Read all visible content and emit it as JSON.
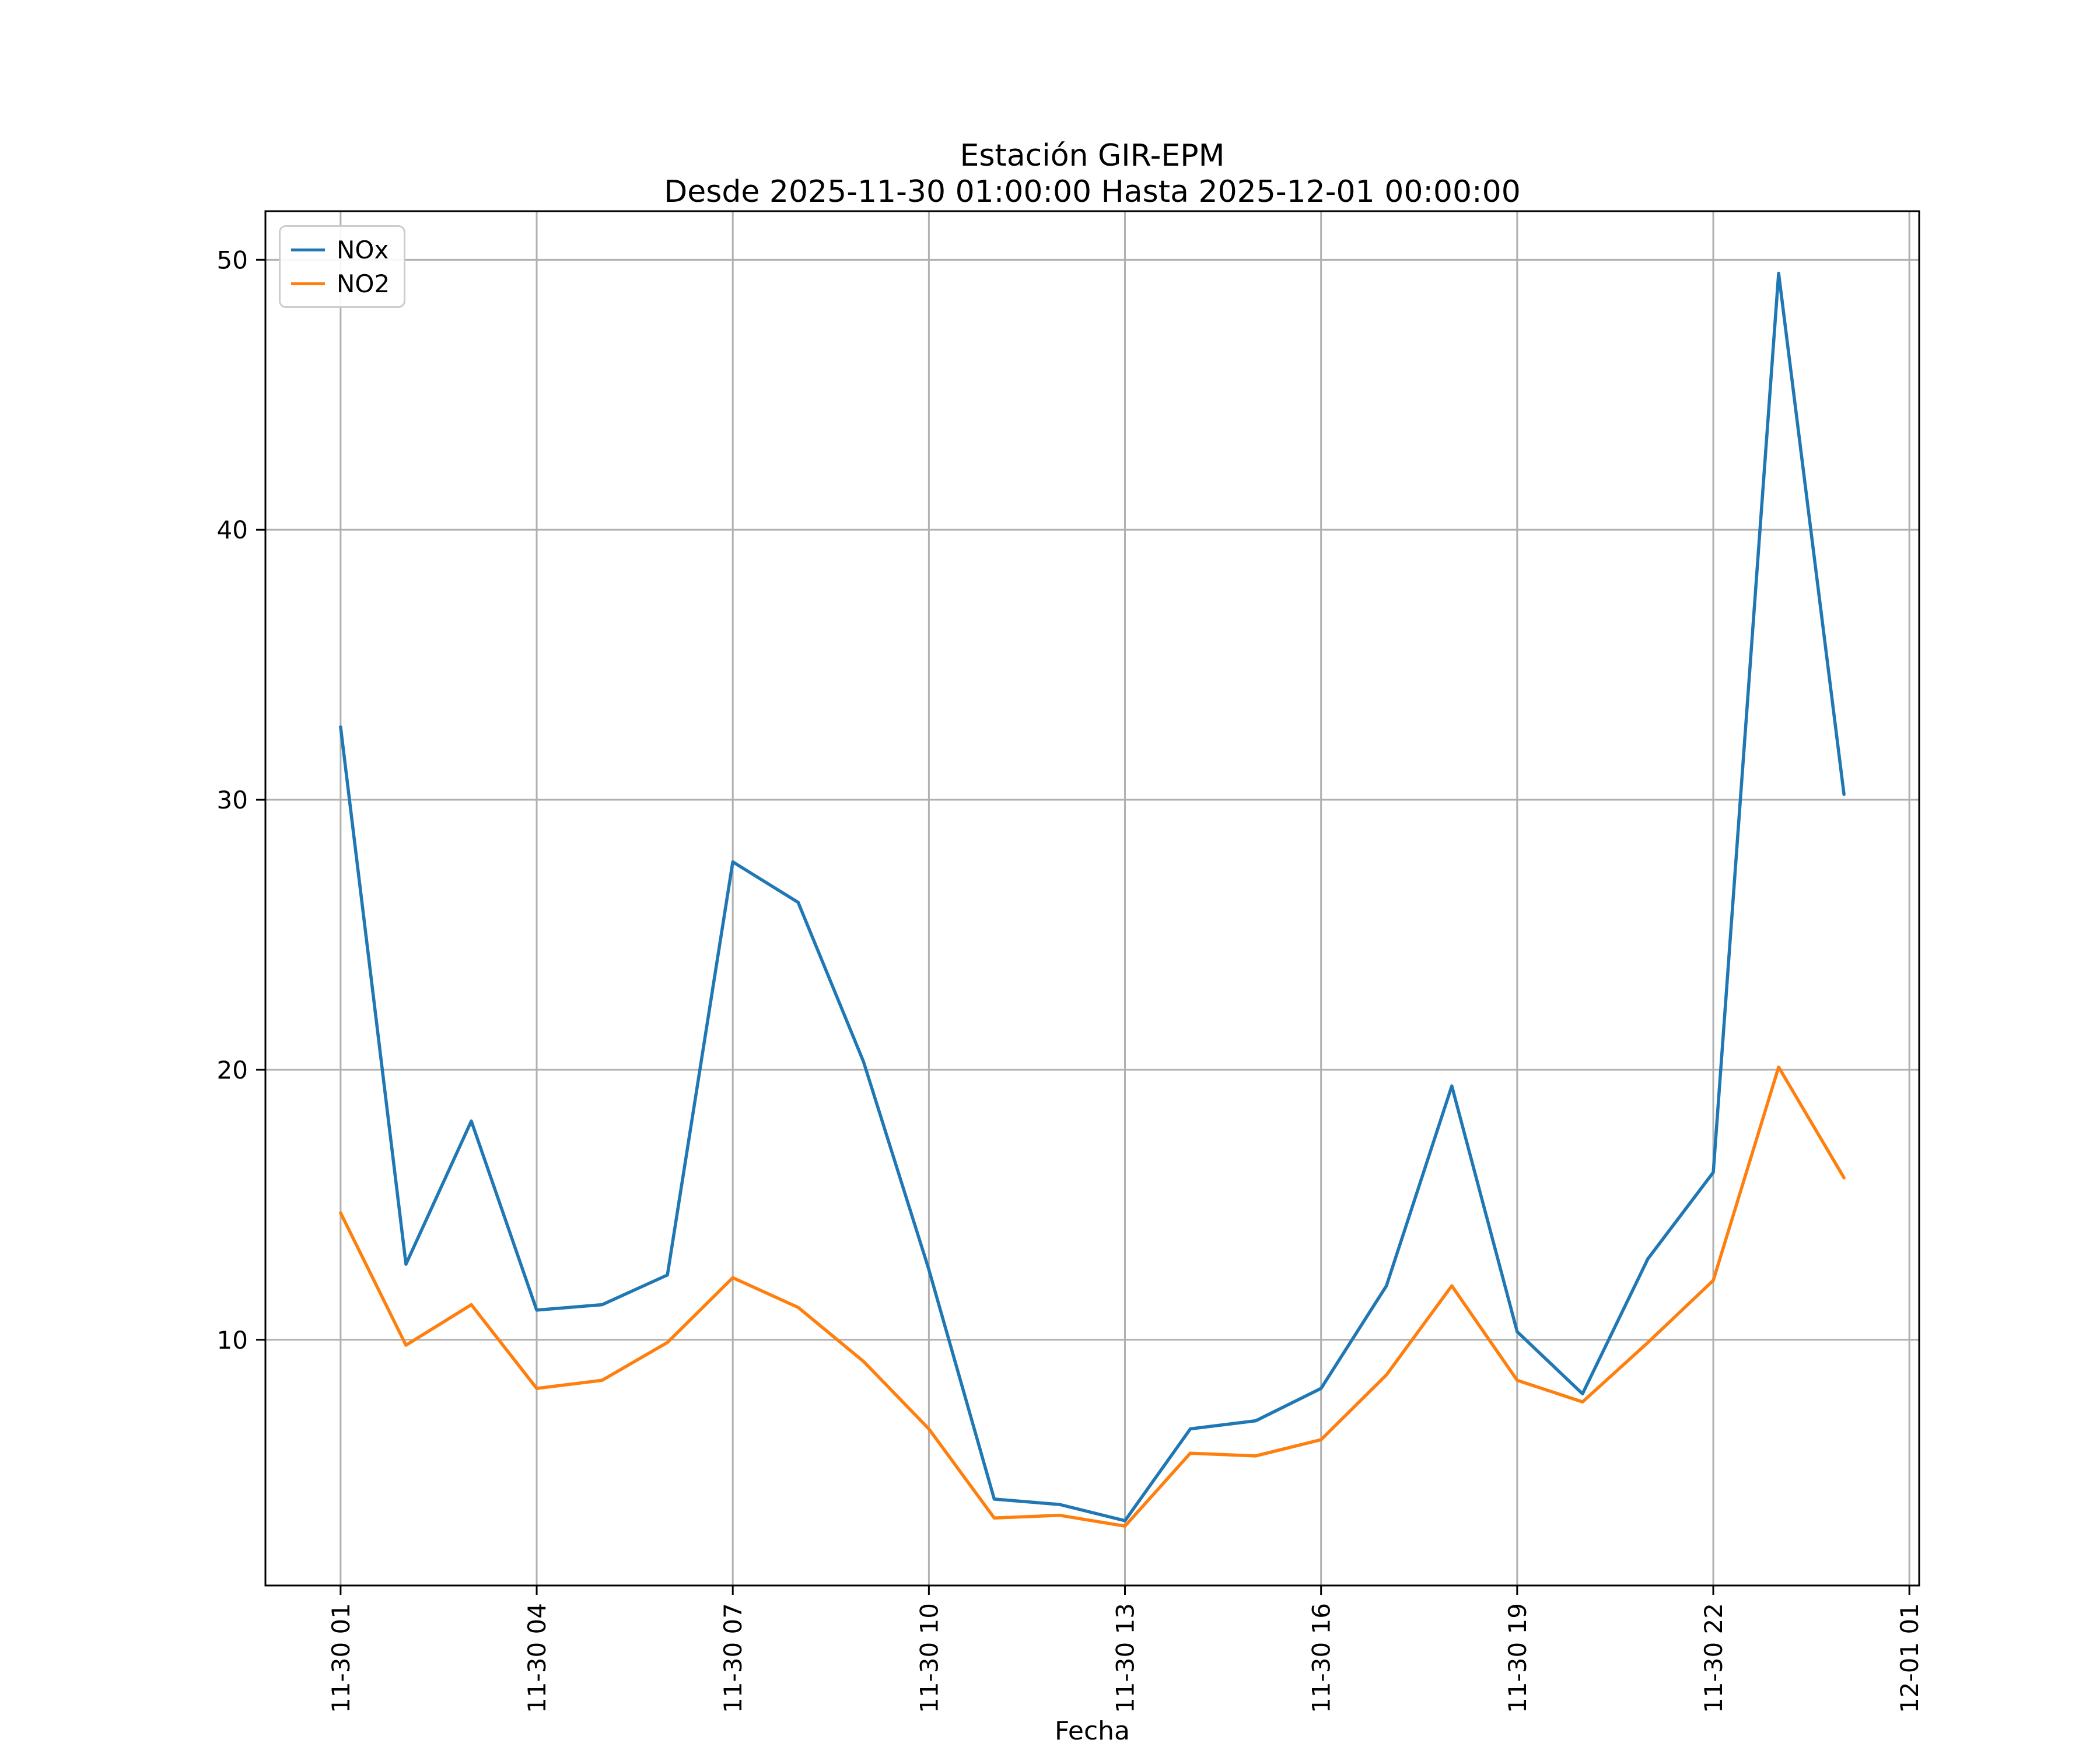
{
  "figure": {
    "background": "#ffffff",
    "title": "Estación GIR-EPM",
    "subtitle": "Desde 2025-11-30 01:00:00 Hasta 2025-12-01 00:00:00",
    "xlabel": "Fecha"
  },
  "chart_data": {
    "type": "line",
    "title": "Estación GIR-EPM",
    "subtitle": "Desde 2025-11-30 01:00:00 Hasta 2025-12-01 00:00:00",
    "xlabel": "Fecha",
    "ylabel": "",
    "grid": true,
    "legend_position": "upper-left",
    "x_hours": [
      1,
      2,
      3,
      4,
      5,
      6,
      7,
      8,
      9,
      10,
      11,
      12,
      13,
      14,
      15,
      16,
      17,
      18,
      19,
      20,
      21,
      22,
      23,
      24
    ],
    "x_tick_hours": [
      1,
      4,
      7,
      10,
      13,
      16,
      19,
      22,
      25
    ],
    "x_tick_labels": [
      "11-30 01",
      "11-30 04",
      "11-30 07",
      "11-30 10",
      "11-30 13",
      "11-30 16",
      "11-30 19",
      "11-30 22",
      "12-01 01"
    ],
    "y_ticks": [
      10,
      20,
      30,
      40,
      50
    ],
    "xlim": [
      -0.15,
      25.15
    ],
    "ylim": [
      0.9,
      51.8
    ],
    "grid_color": "#b0b0b0",
    "axis_color": "#000000",
    "series": [
      {
        "name": "NOx",
        "color": "#1f77b4",
        "values": [
          32.7,
          12.8,
          18.1,
          11.1,
          11.3,
          12.4,
          27.7,
          26.2,
          20.3,
          12.6,
          4.1,
          3.9,
          3.3,
          6.7,
          7.0,
          8.2,
          12.0,
          19.4,
          10.3,
          8.0,
          13.0,
          16.2,
          49.5,
          30.2
        ]
      },
      {
        "name": "NO2",
        "color": "#ff7f0e",
        "values": [
          14.7,
          9.8,
          11.3,
          8.2,
          8.5,
          9.9,
          12.3,
          11.2,
          9.2,
          6.7,
          3.4,
          3.5,
          3.1,
          5.8,
          5.7,
          6.3,
          8.7,
          12.0,
          8.5,
          7.7,
          9.9,
          12.2,
          20.1,
          16.0
        ]
      }
    ]
  }
}
